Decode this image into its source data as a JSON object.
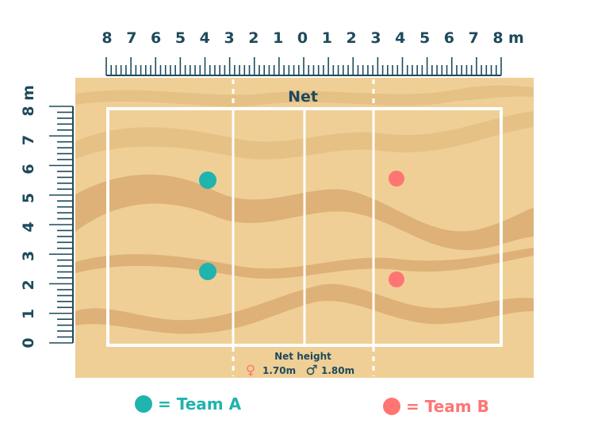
{
  "ruler": {
    "top_labels": [
      "8",
      "7",
      "6",
      "5",
      "4",
      "3",
      "2",
      "1",
      "0",
      "1",
      "2",
      "3",
      "4",
      "5",
      "6",
      "7",
      "8"
    ],
    "unit": "m",
    "left_labels": [
      "0",
      "1",
      "2",
      "3",
      "4",
      "5",
      "6",
      "7",
      "8"
    ]
  },
  "court": {
    "net_label": "Net",
    "net_height_label": "Net height",
    "female_symbol": "♀",
    "female_height": "1.70m",
    "male_symbol": "♂",
    "male_height": "1.80m",
    "sand_color": "#efcf96",
    "sand_dark_color": "#ddb177"
  },
  "players": {
    "team_a_color": "#21b3ad",
    "team_b_color": "#ff7573"
  },
  "legend": {
    "team_a": "= Team A",
    "team_b": "= Team B"
  }
}
